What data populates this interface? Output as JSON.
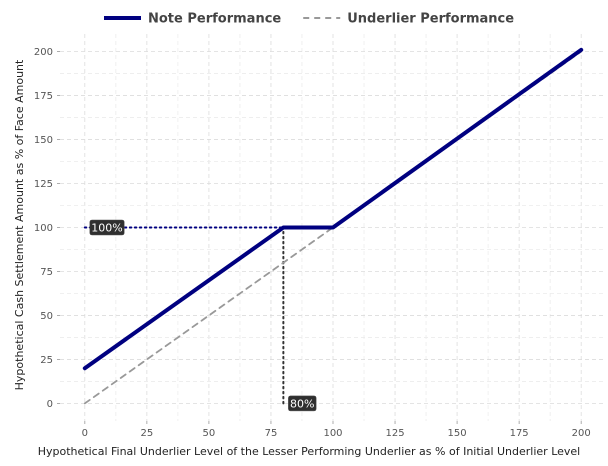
{
  "chart_data": {
    "type": "line",
    "title": "",
    "xlabel": "Hypothetical Final Underlier Level of the Lesser Performing Underlier as % of Initial Underlier Level",
    "ylabel": "Hypothetical Cash Settlement Amount as % of Face Amount",
    "xlim": [
      -10,
      210
    ],
    "ylim": [
      -10,
      210
    ],
    "x_ticks": [
      0,
      25,
      50,
      75,
      100,
      125,
      150,
      175,
      200
    ],
    "y_ticks": [
      0,
      25,
      50,
      75,
      100,
      125,
      150,
      175,
      200
    ],
    "x_tick_labels": [
      "0",
      "25",
      "50",
      "75",
      "100",
      "125",
      "150",
      "175",
      "200"
    ],
    "y_tick_labels": [
      "0",
      "25",
      "50",
      "75",
      "100",
      "125",
      "150",
      "175",
      "200"
    ],
    "grid": true,
    "legend_position": "top-center",
    "series": [
      {
        "name": "Note Performance",
        "style": "solid",
        "color": "#000080",
        "x": [
          0,
          80,
          100,
          200
        ],
        "y": [
          20,
          100,
          100,
          201
        ]
      },
      {
        "name": "Underlier Performance",
        "style": "dashed",
        "color": "#999999",
        "x": [
          0,
          200
        ],
        "y": [
          0,
          200
        ]
      }
    ],
    "reference_lines": [
      {
        "type": "horizontal",
        "from_x": 0,
        "to_x": 80,
        "y": 100,
        "style": "dotted",
        "color": "#000080"
      },
      {
        "type": "vertical",
        "x": 80,
        "from_y": 0,
        "to_y": 100,
        "style": "dotted",
        "color": "#333333"
      }
    ],
    "annotations": [
      {
        "text": "100%",
        "x": 0,
        "y": 100
      },
      {
        "text": "80%",
        "x": 80,
        "y": 0
      }
    ]
  }
}
